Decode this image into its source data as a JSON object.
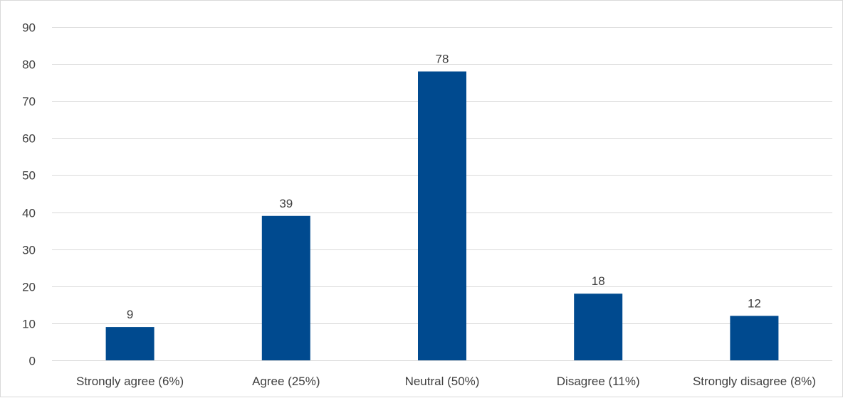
{
  "chart_data": {
    "type": "bar",
    "title": "",
    "xlabel": "",
    "ylabel": "",
    "categories": [
      "Strongly agree (6%)",
      "Agree (25%)",
      "Neutral (50%)",
      "Disagree (11%)",
      "Strongly disagree (8%)"
    ],
    "values": [
      9,
      39,
      78,
      18,
      12
    ],
    "data_labels": [
      "9",
      "39",
      "78",
      "18",
      "12"
    ],
    "ylim": [
      0,
      90
    ],
    "yticks": [
      0,
      10,
      20,
      30,
      40,
      50,
      60,
      70,
      80,
      90
    ],
    "ytick_labels": [
      "0",
      "10",
      "20",
      "30",
      "40",
      "50",
      "60",
      "70",
      "80",
      "90"
    ],
    "grid": true,
    "legend": "none",
    "bar_color": "#004A8F",
    "grid_color": "#D9D9D9",
    "text_color": "#404040"
  }
}
